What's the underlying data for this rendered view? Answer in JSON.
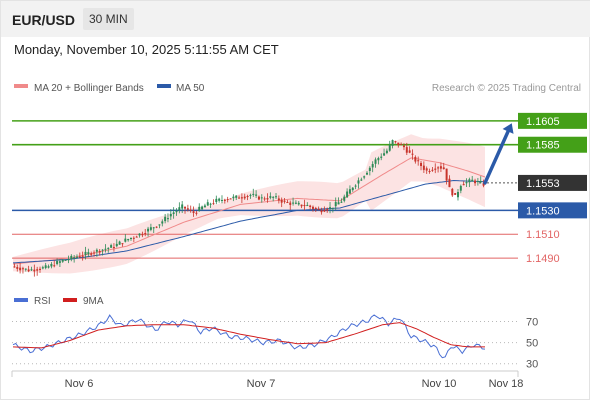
{
  "header": {
    "pair": "EUR/USD",
    "timeframe": "30 MIN",
    "datetime": "Monday, November 10, 2025 5:11:55 AM CET"
  },
  "chart_data": [
    {
      "type": "line",
      "name": "price",
      "legend": [
        {
          "label": "MA 20 + Bollinger Bands",
          "color": "#f08a8a"
        },
        {
          "label": "MA 50",
          "color": "#2b5aa8"
        }
      ],
      "legend_placement": "top-left",
      "watermark": "Research © 2025 Trading Central",
      "x_ticks": [
        "Nov 6",
        "Nov 7",
        "Nov 10",
        "Nov 18"
      ],
      "y_range": [
        1.1475,
        1.1625
      ],
      "levels": [
        {
          "label": "1.1605",
          "value": 1.1605,
          "color": "#44a018",
          "kind": "resistance"
        },
        {
          "label": "1.1585",
          "value": 1.1585,
          "color": "#44a018",
          "kind": "resistance"
        },
        {
          "label": "1.1553",
          "value": 1.1553,
          "color": "#333333",
          "kind": "last-price"
        },
        {
          "label": "1.1530",
          "value": 1.153,
          "color": "#2b5aa8",
          "kind": "pivot"
        },
        {
          "label": "1.1510",
          "value": 1.151,
          "color": "#e26565",
          "kind": "support"
        },
        {
          "label": "1.1490",
          "value": 1.149,
          "color": "#e26565",
          "kind": "support"
        }
      ],
      "candle_colors": {
        "up": "#2e8b57",
        "down": "#c8342b"
      },
      "price_path": [
        [
          0,
          1.1483
        ],
        [
          6,
          1.148
        ],
        [
          12,
          1.1482
        ],
        [
          18,
          1.1488
        ],
        [
          24,
          1.1492
        ],
        [
          30,
          1.1496
        ],
        [
          36,
          1.15
        ],
        [
          40,
          1.1505
        ],
        [
          46,
          1.1511
        ],
        [
          52,
          1.1519
        ],
        [
          56,
          1.1527
        ],
        [
          60,
          1.1533
        ],
        [
          64,
          1.1528
        ],
        [
          68,
          1.1534
        ],
        [
          72,
          1.1538
        ],
        [
          76,
          1.154
        ],
        [
          80,
          1.1541
        ],
        [
          84,
          1.1543
        ],
        [
          88,
          1.154
        ],
        [
          92,
          1.1541
        ],
        [
          96,
          1.1537
        ],
        [
          100,
          1.1535
        ],
        [
          104,
          1.1534
        ],
        [
          106,
          1.1532
        ],
        [
          108,
          1.153
        ],
        [
          112,
          1.1532
        ],
        [
          116,
          1.1538
        ],
        [
          120,
          1.155
        ],
        [
          124,
          1.156
        ],
        [
          128,
          1.1572
        ],
        [
          132,
          1.158
        ],
        [
          134,
          1.1588
        ],
        [
          138,
          1.1583
        ],
        [
          142,
          1.1572
        ],
        [
          146,
          1.1563
        ],
        [
          150,
          1.1567
        ],
        [
          152,
          1.1565
        ],
        [
          154,
          1.1548
        ],
        [
          156,
          1.1541
        ],
        [
          158,
          1.1552
        ],
        [
          162,
          1.1555
        ],
        [
          166,
          1.1552
        ]
      ],
      "ma50_path": [
        [
          0,
          1.1486
        ],
        [
          20,
          1.1489
        ],
        [
          40,
          1.1496
        ],
        [
          60,
          1.1508
        ],
        [
          80,
          1.1521
        ],
        [
          100,
          1.153
        ],
        [
          115,
          1.1532
        ],
        [
          130,
          1.1542
        ],
        [
          145,
          1.1552
        ],
        [
          155,
          1.1555
        ],
        [
          166,
          1.1554
        ]
      ],
      "ma20_path": [
        [
          0,
          1.1485
        ],
        [
          20,
          1.149
        ],
        [
          40,
          1.15
        ],
        [
          60,
          1.152
        ],
        [
          80,
          1.1535
        ],
        [
          100,
          1.154
        ],
        [
          115,
          1.1538
        ],
        [
          130,
          1.156
        ],
        [
          140,
          1.1574
        ],
        [
          150,
          1.157
        ],
        [
          160,
          1.1563
        ],
        [
          166,
          1.1558
        ]
      ],
      "forecast_arrow": [
        [
          166,
          1.1553
        ],
        [
          174,
          1.1603
        ]
      ]
    },
    {
      "type": "line",
      "name": "oscillator",
      "legend": [
        {
          "label": "RSI",
          "color": "#4a6fd4"
        },
        {
          "label": "9MA",
          "color": "#d11f1f"
        }
      ],
      "y_range": [
        25,
        80
      ],
      "y_ticks": [
        70,
        50,
        30
      ],
      "rsi_path": [
        [
          0,
          48
        ],
        [
          6,
          42
        ],
        [
          12,
          46
        ],
        [
          18,
          52
        ],
        [
          24,
          58
        ],
        [
          30,
          66
        ],
        [
          34,
          74
        ],
        [
          38,
          66
        ],
        [
          44,
          72
        ],
        [
          50,
          62
        ],
        [
          54,
          70
        ],
        [
          58,
          67
        ],
        [
          62,
          72
        ],
        [
          66,
          60
        ],
        [
          70,
          64
        ],
        [
          76,
          56
        ],
        [
          82,
          54
        ],
        [
          88,
          50
        ],
        [
          94,
          52
        ],
        [
          100,
          45
        ],
        [
          106,
          48
        ],
        [
          112,
          55
        ],
        [
          118,
          65
        ],
        [
          124,
          70
        ],
        [
          128,
          76
        ],
        [
          132,
          68
        ],
        [
          136,
          74
        ],
        [
          140,
          56
        ],
        [
          144,
          52
        ],
        [
          148,
          47
        ],
        [
          150,
          40
        ],
        [
          152,
          35
        ],
        [
          154,
          47
        ],
        [
          158,
          42
        ],
        [
          162,
          48
        ],
        [
          166,
          45
        ]
      ],
      "ma9_path": [
        [
          0,
          46
        ],
        [
          10,
          45
        ],
        [
          20,
          52
        ],
        [
          30,
          62
        ],
        [
          40,
          66
        ],
        [
          50,
          67
        ],
        [
          60,
          67
        ],
        [
          70,
          64
        ],
        [
          80,
          58
        ],
        [
          90,
          53
        ],
        [
          100,
          49
        ],
        [
          110,
          50
        ],
        [
          120,
          58
        ],
        [
          130,
          67
        ],
        [
          136,
          69
        ],
        [
          142,
          63
        ],
        [
          148,
          55
        ],
        [
          154,
          48
        ],
        [
          160,
          46
        ],
        [
          166,
          46
        ]
      ]
    }
  ]
}
